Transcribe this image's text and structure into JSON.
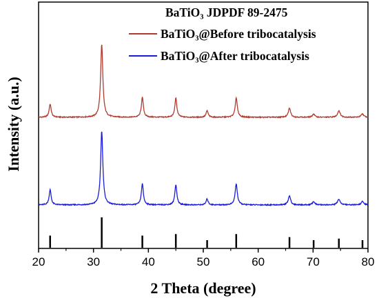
{
  "chart_data": {
    "type": "line",
    "title": "",
    "xlabel": "2 Theta (degree)",
    "ylabel": "Intensity (a.u.)",
    "xlim": [
      20,
      80
    ],
    "xticks": [
      20,
      30,
      40,
      50,
      60,
      70,
      80
    ],
    "y_ticks_shown": false,
    "grid": false,
    "legend_position": "top-right",
    "reference": {
      "label": "BaTiO₃  JDPDF 89-2475",
      "peaks": [
        {
          "x": 22.1,
          "rel": 0.4
        },
        {
          "x": 31.5,
          "rel": 1.0
        },
        {
          "x": 38.9,
          "rel": 0.4
        },
        {
          "x": 45.0,
          "rel": 0.45
        },
        {
          "x": 50.7,
          "rel": 0.25
        },
        {
          "x": 56.0,
          "rel": 0.45
        },
        {
          "x": 65.7,
          "rel": 0.35
        },
        {
          "x": 70.1,
          "rel": 0.25
        },
        {
          "x": 74.7,
          "rel": 0.3
        },
        {
          "x": 79.0,
          "rel": 0.25
        }
      ]
    },
    "series": [
      {
        "name": "BaTiO₃@Before tribocatalysis",
        "color": "#b03a2e",
        "baseline": 0,
        "peaks": [
          {
            "x": 22.1,
            "h": 0.16,
            "w": 0.22
          },
          {
            "x": 31.5,
            "h": 0.88,
            "w": 0.24
          },
          {
            "x": 38.9,
            "h": 0.24,
            "w": 0.22
          },
          {
            "x": 45.0,
            "h": 0.23,
            "w": 0.22
          },
          {
            "x": 50.7,
            "h": 0.08,
            "w": 0.22
          },
          {
            "x": 56.0,
            "h": 0.23,
            "w": 0.24
          },
          {
            "x": 65.7,
            "h": 0.11,
            "w": 0.25
          },
          {
            "x": 70.1,
            "h": 0.04,
            "w": 0.25
          },
          {
            "x": 74.7,
            "h": 0.08,
            "w": 0.28
          },
          {
            "x": 79.0,
            "h": 0.04,
            "w": 0.28
          }
        ]
      },
      {
        "name": "BaTiO₃@After tribocatalysis",
        "color": "#1a1ad8",
        "baseline": 0,
        "peaks": [
          {
            "x": 22.1,
            "h": 0.18,
            "w": 0.22
          },
          {
            "x": 31.5,
            "h": 0.88,
            "w": 0.24
          },
          {
            "x": 38.9,
            "h": 0.25,
            "w": 0.22
          },
          {
            "x": 45.0,
            "h": 0.24,
            "w": 0.22
          },
          {
            "x": 50.7,
            "h": 0.07,
            "w": 0.22
          },
          {
            "x": 56.0,
            "h": 0.25,
            "w": 0.24
          },
          {
            "x": 65.7,
            "h": 0.11,
            "w": 0.25
          },
          {
            "x": 70.1,
            "h": 0.04,
            "w": 0.25
          },
          {
            "x": 74.7,
            "h": 0.07,
            "w": 0.28
          },
          {
            "x": 79.0,
            "h": 0.04,
            "w": 0.28
          }
        ]
      }
    ]
  }
}
